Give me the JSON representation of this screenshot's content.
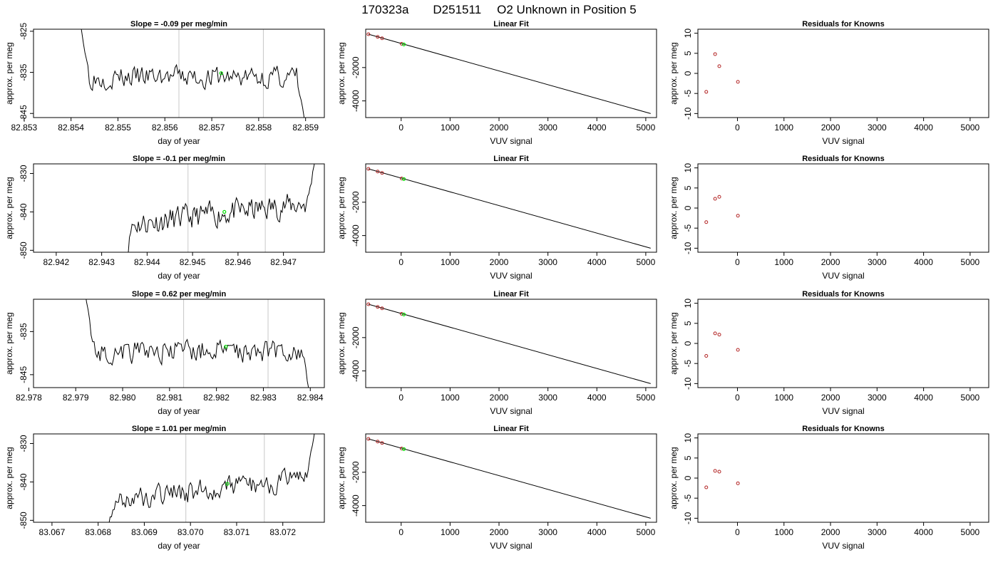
{
  "header": {
    "title_parts": [
      "170323a",
      "D251511",
      "O2 Unknown in Position  5"
    ]
  },
  "chart_data": [
    {
      "type": "line",
      "title": "Slope =  -0.09  per meg/min",
      "xlabel": "day of year",
      "ylabel": "approx. per meg",
      "xlim": [
        82.8532,
        82.8594
      ],
      "ylim": [
        -846,
        -824.5
      ],
      "xticks": [
        82.853,
        82.854,
        82.855,
        82.856,
        82.857,
        82.858,
        82.859
      ],
      "xtick_labels": [
        "82.853",
        "82.854",
        "82.855",
        "82.856",
        "82.857",
        "82.858",
        "82.859"
      ],
      "yticks": [
        -825,
        -835,
        -845
      ],
      "ytick_labels": [
        "-825",
        "-835",
        "-845"
      ],
      "vlines": [
        82.8563,
        82.8581
      ],
      "curve": {
        "x_start": 82.8542,
        "x_end": 82.859,
        "start_y": -823,
        "end_y": -848,
        "mean": -836.2,
        "amp": 1.5,
        "trend": 0,
        "seed": 3
      },
      "marker": {
        "x": 82.8572,
        "y": -835.2
      }
    },
    {
      "type": "line",
      "title": "Linear Fit",
      "xlabel": "VUV signal",
      "ylabel": "approx. per meg",
      "xlim": [
        -725,
        5220
      ],
      "ylim": [
        -5000,
        300
      ],
      "xticks": [
        0,
        1000,
        2000,
        3000,
        4000,
        5000
      ],
      "xtick_labels": [
        "0",
        "1000",
        "2000",
        "3000",
        "4000",
        "5000"
      ],
      "yticks": [
        -2000,
        -4000
      ],
      "ytick_labels": [
        "-2000",
        "-4000"
      ],
      "line": {
        "x": [
          -670,
          5100
        ],
        "y": [
          0,
          -4760
        ]
      },
      "points": [
        {
          "x": -670,
          "y": 0
        },
        {
          "x": -480,
          "y": -160
        },
        {
          "x": -390,
          "y": -245
        },
        {
          "x": 10,
          "y": -575
        }
      ],
      "marker": {
        "x": 55,
        "y": -610
      }
    },
    {
      "type": "scatter",
      "title": "Residuals for Knowns",
      "xlabel": "VUV signal",
      "ylabel": "approx. per meg",
      "xlim": [
        -850,
        5400
      ],
      "ylim": [
        -11,
        11
      ],
      "xticks": [
        0,
        1000,
        2000,
        3000,
        4000,
        5000
      ],
      "xtick_labels": [
        "0",
        "1000",
        "2000",
        "3000",
        "4000",
        "5000"
      ],
      "yticks": [
        10,
        5,
        0,
        -5,
        -10
      ],
      "ytick_labels": [
        "10",
        "5",
        "0",
        "-5",
        "-10"
      ],
      "points": [
        {
          "x": -670,
          "y": -4.6
        },
        {
          "x": -480,
          "y": 4.8
        },
        {
          "x": -390,
          "y": 1.8
        },
        {
          "x": 10,
          "y": -2.1
        }
      ]
    },
    {
      "type": "line",
      "title": "Slope =  -0.1  per meg/min",
      "xlabel": "day of year",
      "ylabel": "approx. per meg",
      "xlim": [
        82.9415,
        82.9479
      ],
      "ylim": [
        -850.5,
        -827.5
      ],
      "xticks": [
        82.942,
        82.943,
        82.944,
        82.945,
        82.946,
        82.947
      ],
      "xtick_labels": [
        "82.942",
        "82.943",
        "82.944",
        "82.945",
        "82.946",
        "82.947"
      ],
      "yticks": [
        -830,
        -840,
        -850
      ],
      "ytick_labels": [
        "-830",
        "-840",
        "-850"
      ],
      "vlines": [
        82.9449,
        82.9466
      ],
      "curve": {
        "x_start": 82.9435,
        "x_end": 82.9477,
        "start_y": -855,
        "end_y": -826,
        "mean": -840.5,
        "amp": 1.8,
        "trend": 6,
        "seed": 11
      },
      "marker": {
        "x": 82.9457,
        "y": -840
      }
    },
    {
      "type": "line",
      "title": "Linear Fit",
      "xlabel": "VUV signal",
      "ylabel": "approx. per meg",
      "xlim": [
        -725,
        5220
      ],
      "ylim": [
        -5000,
        300
      ],
      "xticks": [
        0,
        1000,
        2000,
        3000,
        4000,
        5000
      ],
      "xtick_labels": [
        "0",
        "1000",
        "2000",
        "3000",
        "4000",
        "5000"
      ],
      "yticks": [
        -2000,
        -4000
      ],
      "ytick_labels": [
        "-2000",
        "-4000"
      ],
      "line": {
        "x": [
          -670,
          5100
        ],
        "y": [
          0,
          -4760
        ]
      },
      "points": [
        {
          "x": -670,
          "y": 0
        },
        {
          "x": -480,
          "y": -160
        },
        {
          "x": -390,
          "y": -245
        },
        {
          "x": 10,
          "y": -575
        }
      ],
      "marker": {
        "x": 55,
        "y": -610
      }
    },
    {
      "type": "scatter",
      "title": "Residuals for Knowns",
      "xlabel": "VUV signal",
      "ylabel": "approx. per meg",
      "xlim": [
        -850,
        5400
      ],
      "ylim": [
        -11,
        11
      ],
      "xticks": [
        0,
        1000,
        2000,
        3000,
        4000,
        5000
      ],
      "xtick_labels": [
        "0",
        "1000",
        "2000",
        "3000",
        "4000",
        "5000"
      ],
      "yticks": [
        10,
        5,
        0,
        -5,
        -10
      ],
      "ytick_labels": [
        "10",
        "5",
        "0",
        "-5",
        "-10"
      ],
      "points": [
        {
          "x": -670,
          "y": -3.5
        },
        {
          "x": -480,
          "y": 2.3
        },
        {
          "x": -390,
          "y": 2.8
        },
        {
          "x": 10,
          "y": -1.9
        }
      ]
    },
    {
      "type": "line",
      "title": "Slope =  0.62  per meg/min",
      "xlabel": "day of year",
      "ylabel": "approx. per meg",
      "xlim": [
        82.9781,
        82.9843
      ],
      "ylim": [
        -848,
        -827.5
      ],
      "xticks": [
        82.978,
        82.979,
        82.98,
        82.981,
        82.982,
        82.983,
        82.984
      ],
      "xtick_labels": [
        "82.978",
        "82.979",
        "82.980",
        "82.981",
        "82.982",
        "82.983",
        "82.984"
      ],
      "yticks": [
        -835,
        -845
      ],
      "ytick_labels": [
        "-835",
        "-845"
      ],
      "vlines": [
        82.9813,
        82.9831
      ],
      "curve": {
        "x_start": 82.9792,
        "x_end": 82.984,
        "start_y": -826,
        "end_y": -850,
        "mean": -839.5,
        "amp": 1.5,
        "trend": 0.5,
        "seed": 21
      },
      "marker": {
        "x": 82.9822,
        "y": -838.5
      }
    },
    {
      "type": "line",
      "title": "Linear Fit",
      "xlabel": "VUV signal",
      "ylabel": "approx. per meg",
      "xlim": [
        -725,
        5220
      ],
      "ylim": [
        -5000,
        300
      ],
      "xticks": [
        0,
        1000,
        2000,
        3000,
        4000,
        5000
      ],
      "xtick_labels": [
        "0",
        "1000",
        "2000",
        "3000",
        "4000",
        "5000"
      ],
      "yticks": [
        -2000,
        -4000
      ],
      "ytick_labels": [
        "-2000",
        "-4000"
      ],
      "line": {
        "x": [
          -670,
          5100
        ],
        "y": [
          0,
          -4760
        ]
      },
      "points": [
        {
          "x": -670,
          "y": 0
        },
        {
          "x": -480,
          "y": -160
        },
        {
          "x": -390,
          "y": -245
        },
        {
          "x": 10,
          "y": -575
        }
      ],
      "marker": {
        "x": 55,
        "y": -610
      }
    },
    {
      "type": "scatter",
      "title": "Residuals for Knowns",
      "xlabel": "VUV signal",
      "ylabel": "approx. per meg",
      "xlim": [
        -850,
        5400
      ],
      "ylim": [
        -11,
        11
      ],
      "xticks": [
        0,
        1000,
        2000,
        3000,
        4000,
        5000
      ],
      "xtick_labels": [
        "0",
        "1000",
        "2000",
        "3000",
        "4000",
        "5000"
      ],
      "yticks": [
        10,
        5,
        0,
        -5,
        -10
      ],
      "ytick_labels": [
        "10",
        "5",
        "0",
        "-5",
        "-10"
      ],
      "points": [
        {
          "x": -670,
          "y": -3.1
        },
        {
          "x": -480,
          "y": 2.5
        },
        {
          "x": -390,
          "y": 2.2
        },
        {
          "x": 10,
          "y": -1.6
        }
      ]
    },
    {
      "type": "line",
      "title": "Slope =  1.01  per meg/min",
      "xlabel": "day of year",
      "ylabel": "approx. per meg",
      "xlim": [
        83.0666,
        83.0729
      ],
      "ylim": [
        -850.5,
        -827.5
      ],
      "xticks": [
        83.067,
        83.068,
        83.069,
        83.07,
        83.071,
        83.072
      ],
      "xtick_labels": [
        "83.067",
        "83.068",
        "83.069",
        "83.070",
        "83.071",
        "83.072"
      ],
      "yticks": [
        -830,
        -840,
        -850
      ],
      "ytick_labels": [
        "-830",
        "-840",
        "-850"
      ],
      "vlines": [
        83.0699,
        83.0716
      ],
      "curve": {
        "x_start": 83.0682,
        "x_end": 83.0727,
        "start_y": -852,
        "end_y": -826,
        "mean": -842,
        "amp": 1.6,
        "trend": 6,
        "seed": 33
      },
      "marker": {
        "x": 83.0708,
        "y": -840.5
      }
    },
    {
      "type": "line",
      "title": "Linear Fit",
      "xlabel": "VUV signal",
      "ylabel": "approx. per meg",
      "xlim": [
        -725,
        5220
      ],
      "ylim": [
        -5000,
        300
      ],
      "xticks": [
        0,
        1000,
        2000,
        3000,
        4000,
        5000
      ],
      "xtick_labels": [
        "0",
        "1000",
        "2000",
        "3000",
        "4000",
        "5000"
      ],
      "yticks": [
        -2000,
        -4000
      ],
      "ytick_labels": [
        "-2000",
        "-4000"
      ],
      "line": {
        "x": [
          -670,
          5100
        ],
        "y": [
          0,
          -4760
        ]
      },
      "points": [
        {
          "x": -670,
          "y": 0
        },
        {
          "x": -480,
          "y": -160
        },
        {
          "x": -390,
          "y": -245
        },
        {
          "x": 10,
          "y": -575
        }
      ],
      "marker": {
        "x": 55,
        "y": -610
      }
    },
    {
      "type": "scatter",
      "title": "Residuals for Knowns",
      "xlabel": "VUV signal",
      "ylabel": "approx. per meg",
      "xlim": [
        -850,
        5400
      ],
      "ylim": [
        -11,
        11
      ],
      "xticks": [
        0,
        1000,
        2000,
        3000,
        4000,
        5000
      ],
      "xtick_labels": [
        "0",
        "1000",
        "2000",
        "3000",
        "4000",
        "5000"
      ],
      "yticks": [
        10,
        5,
        0,
        -5,
        -10
      ],
      "ytick_labels": [
        "10",
        "5",
        "0",
        "-5",
        "-10"
      ],
      "points": [
        {
          "x": -670,
          "y": -2.3
        },
        {
          "x": -480,
          "y": 1.8
        },
        {
          "x": -390,
          "y": 1.6
        },
        {
          "x": 10,
          "y": -1.3
        }
      ]
    }
  ],
  "colors": {
    "curve": "#000000",
    "fit_point": "#b22222",
    "marker": "#00dd00",
    "vline": "#c8c8c8",
    "axis": "#000000"
  }
}
